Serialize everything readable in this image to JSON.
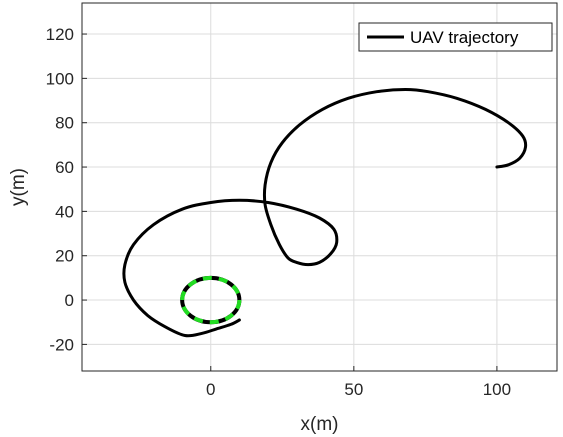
{
  "chart_data": {
    "type": "line",
    "title": "",
    "xlabel": "x(m)",
    "ylabel": "y(m)",
    "xlim": [
      -45,
      121
    ],
    "ylim": [
      -32,
      134
    ],
    "x_ticks": [
      0,
      50,
      100
    ],
    "y_ticks": [
      -20,
      0,
      20,
      40,
      60,
      80,
      100,
      120
    ],
    "grid": true,
    "legend": {
      "position": "top-right",
      "entries": [
        "UAV trajectory"
      ]
    },
    "series": [
      {
        "name": "UAV trajectory",
        "color": "#000000",
        "style": "solid",
        "points": [
          [
            100,
            60
          ],
          [
            104,
            61
          ],
          [
            108,
            64
          ],
          [
            110,
            69
          ],
          [
            109,
            74
          ],
          [
            104,
            80
          ],
          [
            96,
            86
          ],
          [
            86,
            91
          ],
          [
            76,
            94
          ],
          [
            68,
            95
          ],
          [
            58,
            94
          ],
          [
            48,
            91
          ],
          [
            39,
            86
          ],
          [
            31,
            79
          ],
          [
            25,
            71
          ],
          [
            21,
            62
          ],
          [
            19,
            52
          ],
          [
            19,
            43
          ],
          [
            21,
            34
          ],
          [
            24,
            25
          ],
          [
            27,
            19
          ],
          [
            30,
            17
          ],
          [
            34,
            16
          ],
          [
            38,
            17
          ],
          [
            42,
            21
          ],
          [
            44,
            26
          ],
          [
            43,
            32
          ],
          [
            38,
            37
          ],
          [
            30,
            41
          ],
          [
            20,
            44
          ],
          [
            10,
            45
          ],
          [
            0,
            44
          ],
          [
            -10,
            41
          ],
          [
            -20,
            34
          ],
          [
            -27,
            25
          ],
          [
            -30,
            16
          ],
          [
            -30,
            8
          ],
          [
            -27,
            0
          ],
          [
            -22,
            -7
          ],
          [
            -16,
            -12
          ],
          [
            -9,
            -16
          ],
          [
            -3,
            -15
          ],
          [
            2,
            -13
          ],
          [
            7,
            -11
          ],
          [
            10,
            -9
          ]
        ]
      },
      {
        "name": "",
        "color": "#000000",
        "style": "solid",
        "shape": "circle",
        "center": [
          0,
          0
        ],
        "radius": 10
      },
      {
        "name": "",
        "color": "#22dd22",
        "style": "dashed",
        "shape": "circle",
        "center": [
          0,
          0
        ],
        "radius": 10
      }
    ]
  }
}
